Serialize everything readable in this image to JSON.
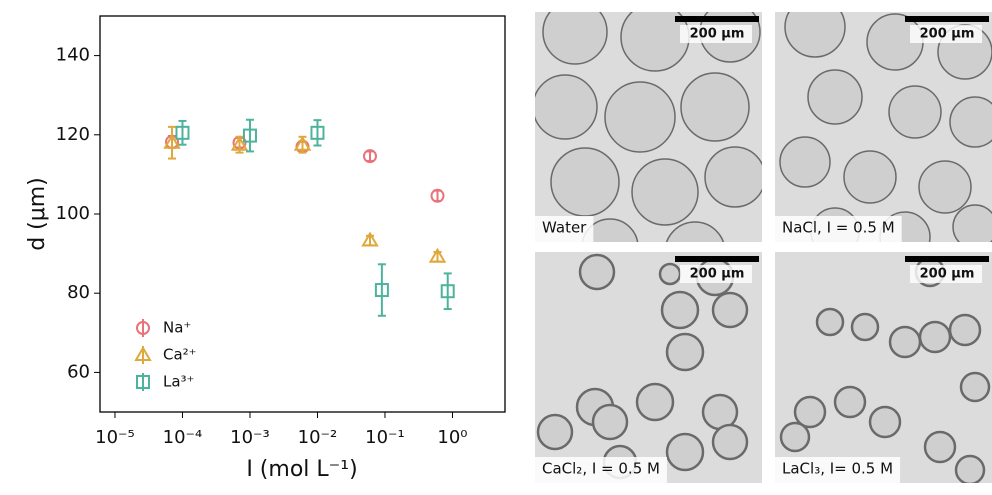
{
  "chart_data": {
    "type": "scatter",
    "x_label": "I (mol L⁻¹)",
    "y_label": "d (μm)",
    "xlim": [
      6e-06,
      6
    ],
    "xlog": true,
    "xticks": [
      {
        "value": 1e-05,
        "label": "10⁻⁵"
      },
      {
        "value": 0.0001,
        "label": "10⁻⁴"
      },
      {
        "value": 0.001,
        "label": "10⁻³"
      },
      {
        "value": 0.01,
        "label": "10⁻²"
      },
      {
        "value": 0.1,
        "label": "10⁻¹"
      },
      {
        "value": 1,
        "label": "10⁰"
      }
    ],
    "ylim": [
      50,
      150
    ],
    "yticks": [
      60,
      80,
      100,
      120,
      140
    ],
    "legend": "lower left",
    "series": [
      {
        "name": "Na⁺",
        "color": "#e8737a",
        "marker": "circle",
        "x": [
          7e-05,
          0.0007,
          0.006,
          0.06,
          0.6
        ],
        "values": [
          118.2,
          118,
          117,
          114.6,
          104.6
        ],
        "errors": [
          1.5,
          1.2,
          1.2,
          1.2,
          1.3
        ]
      },
      {
        "name": "Ca²⁺",
        "color": "#e0a83a",
        "marker": "triangle",
        "x": [
          7e-05,
          0.0007,
          0.006,
          0.06,
          0.6
        ],
        "values": [
          118,
          117.5,
          117.5,
          93.3,
          89.2
        ],
        "errors": [
          4,
          2,
          2,
          1.2,
          1.2
        ]
      },
      {
        "name": "La³⁺",
        "color": "#4db39c",
        "marker": "square",
        "x": [
          0.0001,
          0.001,
          0.01,
          0.09,
          0.85
        ],
        "values": [
          120.5,
          119.8,
          120.5,
          80.8,
          80.5
        ],
        "errors": [
          3,
          4,
          3.2,
          6.5,
          4.5
        ]
      }
    ]
  },
  "panels": [
    {
      "caption": "Water",
      "scale_bar": "200 μm"
    },
    {
      "caption": "NaCl, I = 0.5 M",
      "scale_bar": "200 μm"
    },
    {
      "caption": "CaCl₂, I = 0.5 M",
      "scale_bar": "200 μm"
    },
    {
      "caption": "LaCl₃, I= 0.5 M",
      "scale_bar": "200 μm"
    }
  ]
}
